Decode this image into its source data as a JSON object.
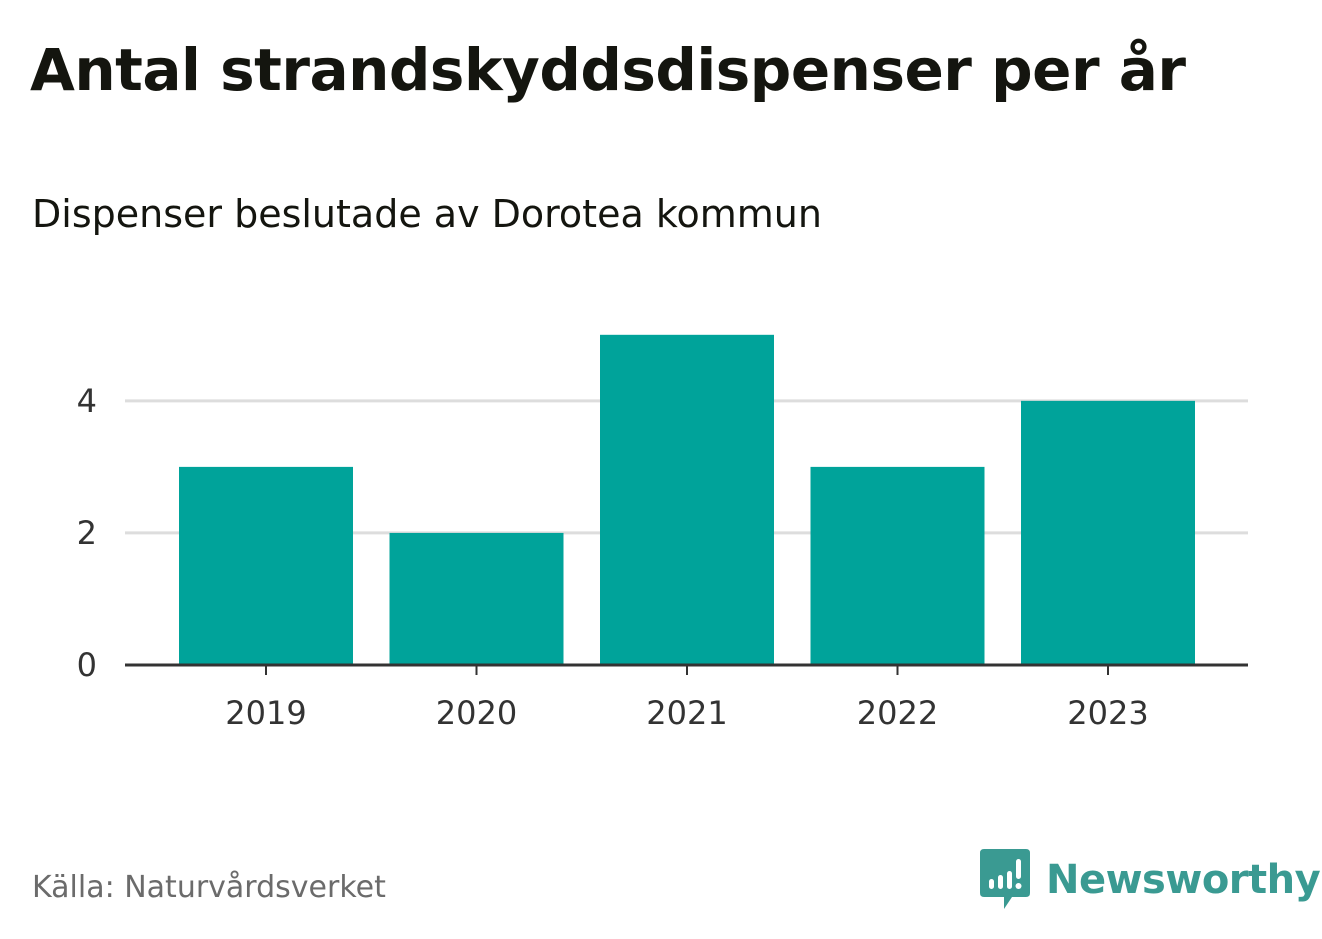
{
  "title": "Antal strandskyddsdispenser per år",
  "subtitle": "Dispenser beslutade av Dorotea kommun",
  "source": "Källa: Naturvårdsverket",
  "brand": {
    "name": "Newsworthy",
    "icon": "newsworthy-logo-icon",
    "color": "#3a9a92"
  },
  "colors": {
    "bar": "#00a39a",
    "grid": "#dddddd",
    "axis": "#333333"
  },
  "chart_data": {
    "type": "bar",
    "title": "Antal strandskyddsdispenser per år",
    "subtitle": "Dispenser beslutade av Dorotea kommun",
    "xlabel": "",
    "ylabel": "",
    "categories": [
      "2019",
      "2020",
      "2021",
      "2022",
      "2023"
    ],
    "values": [
      3,
      2,
      5,
      3,
      4
    ],
    "ylim": [
      0,
      5.3
    ],
    "yticks": [
      0,
      2,
      4
    ],
    "yticklabels": [
      "0",
      "2",
      "4"
    ],
    "grid": true,
    "legend": "none"
  }
}
